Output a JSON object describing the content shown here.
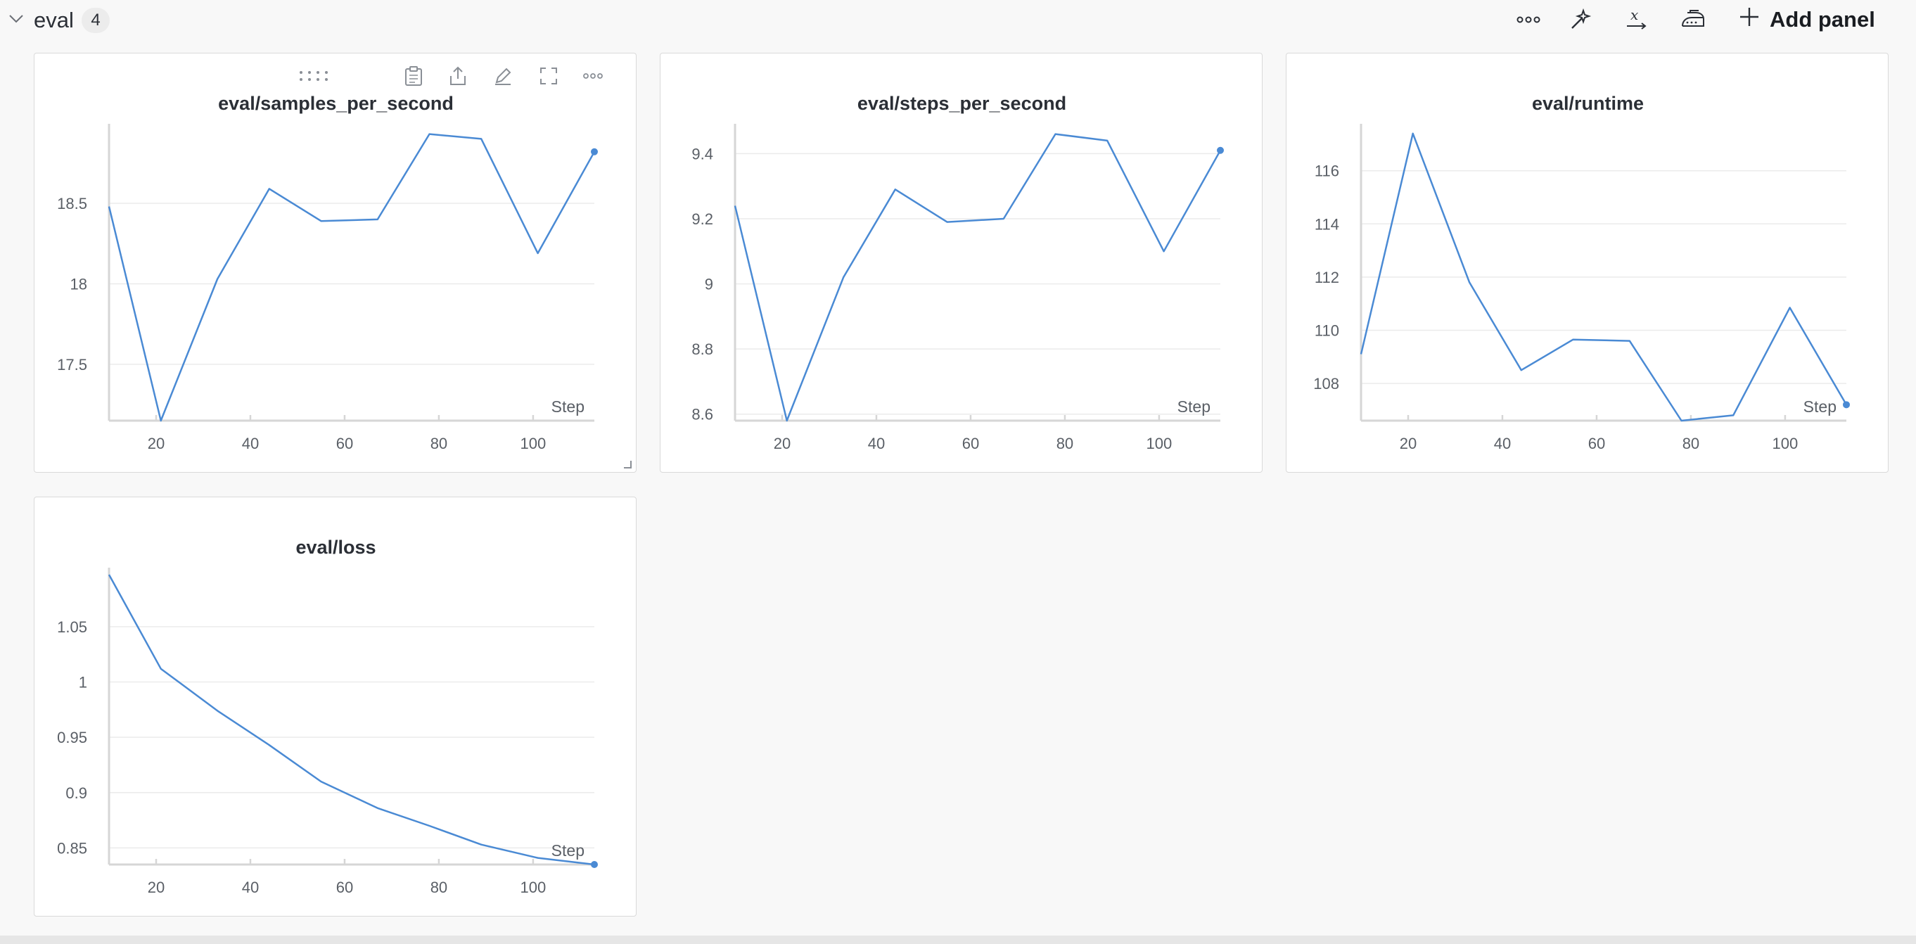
{
  "section": {
    "title": "eval",
    "count": "4",
    "add_panel_label": "Add panel",
    "icons": [
      "more-horizontal-icon",
      "magic-wand-icon",
      "x-axis-icon",
      "iron-icon",
      "plus-icon"
    ]
  },
  "panel_toolbar_icons": [
    "drag-handle-icon",
    "clipboard-icon",
    "export-icon",
    "edit-icon",
    "fullscreen-icon",
    "more-horizontal-icon"
  ],
  "colors": {
    "line": "#4a8ad4",
    "grid": "#ebebeb",
    "axis": "#d6d6d6",
    "text": "#5a5f66"
  },
  "chart_data": [
    {
      "type": "line",
      "title": "eval/samples_per_second",
      "xlabel": "Step",
      "ylabel": "",
      "xlim": [
        10,
        113
      ],
      "ylim": [
        17.15,
        18.95
      ],
      "xticks": [
        20,
        40,
        60,
        80,
        100
      ],
      "yticks": [
        17.5,
        18,
        18.5
      ],
      "ytick_labels": [
        "17.5",
        "18",
        "18.5"
      ],
      "x": [
        10,
        21,
        33,
        44,
        55,
        67,
        78,
        89,
        101,
        113
      ],
      "y": [
        18.48,
        17.15,
        18.03,
        18.59,
        18.39,
        18.4,
        18.93,
        18.9,
        18.19,
        18.82
      ]
    },
    {
      "type": "line",
      "title": "eval/steps_per_second",
      "xlabel": "Step",
      "ylabel": "",
      "xlim": [
        10,
        113
      ],
      "ylim": [
        8.58,
        9.47
      ],
      "xticks": [
        20,
        40,
        60,
        80,
        100
      ],
      "yticks": [
        8.6,
        8.8,
        9,
        9.2,
        9.4
      ],
      "ytick_labels": [
        "8.6",
        "8.8",
        "9",
        "9.2",
        "9.4"
      ],
      "x": [
        10,
        21,
        33,
        44,
        55,
        67,
        78,
        89,
        101,
        113
      ],
      "y": [
        9.24,
        8.58,
        9.02,
        9.29,
        9.19,
        9.2,
        9.46,
        9.44,
        9.1,
        9.41
      ]
    },
    {
      "type": "line",
      "title": "eval/runtime",
      "xlabel": "Step",
      "ylabel": "",
      "xlim": [
        10,
        113
      ],
      "ylim": [
        106.6,
        117.5
      ],
      "xticks": [
        20,
        40,
        60,
        80,
        100
      ],
      "yticks": [
        108,
        110,
        112,
        114,
        116
      ],
      "ytick_labels": [
        "108",
        "110",
        "112",
        "114",
        "116"
      ],
      "x": [
        10,
        21,
        33,
        44,
        55,
        67,
        78,
        89,
        101,
        113
      ],
      "y": [
        109.1,
        117.4,
        111.8,
        108.5,
        109.65,
        109.6,
        106.6,
        106.8,
        110.85,
        107.2
      ]
    },
    {
      "type": "line",
      "title": "eval/loss",
      "xlabel": "Step",
      "ylabel": "",
      "xlim": [
        10,
        113
      ],
      "ylim": [
        0.835,
        1.097
      ],
      "xticks": [
        20,
        40,
        60,
        80,
        100
      ],
      "yticks": [
        0.85,
        0.9,
        0.95,
        1,
        1.05
      ],
      "ytick_labels": [
        "0.85",
        "0.9",
        "0.95",
        "1",
        "1.05"
      ],
      "x": [
        10,
        21,
        33,
        44,
        55,
        67,
        78,
        89,
        101,
        113
      ],
      "y": [
        1.097,
        1.012,
        0.974,
        0.943,
        0.91,
        0.886,
        0.87,
        0.853,
        0.841,
        0.835
      ]
    }
  ]
}
